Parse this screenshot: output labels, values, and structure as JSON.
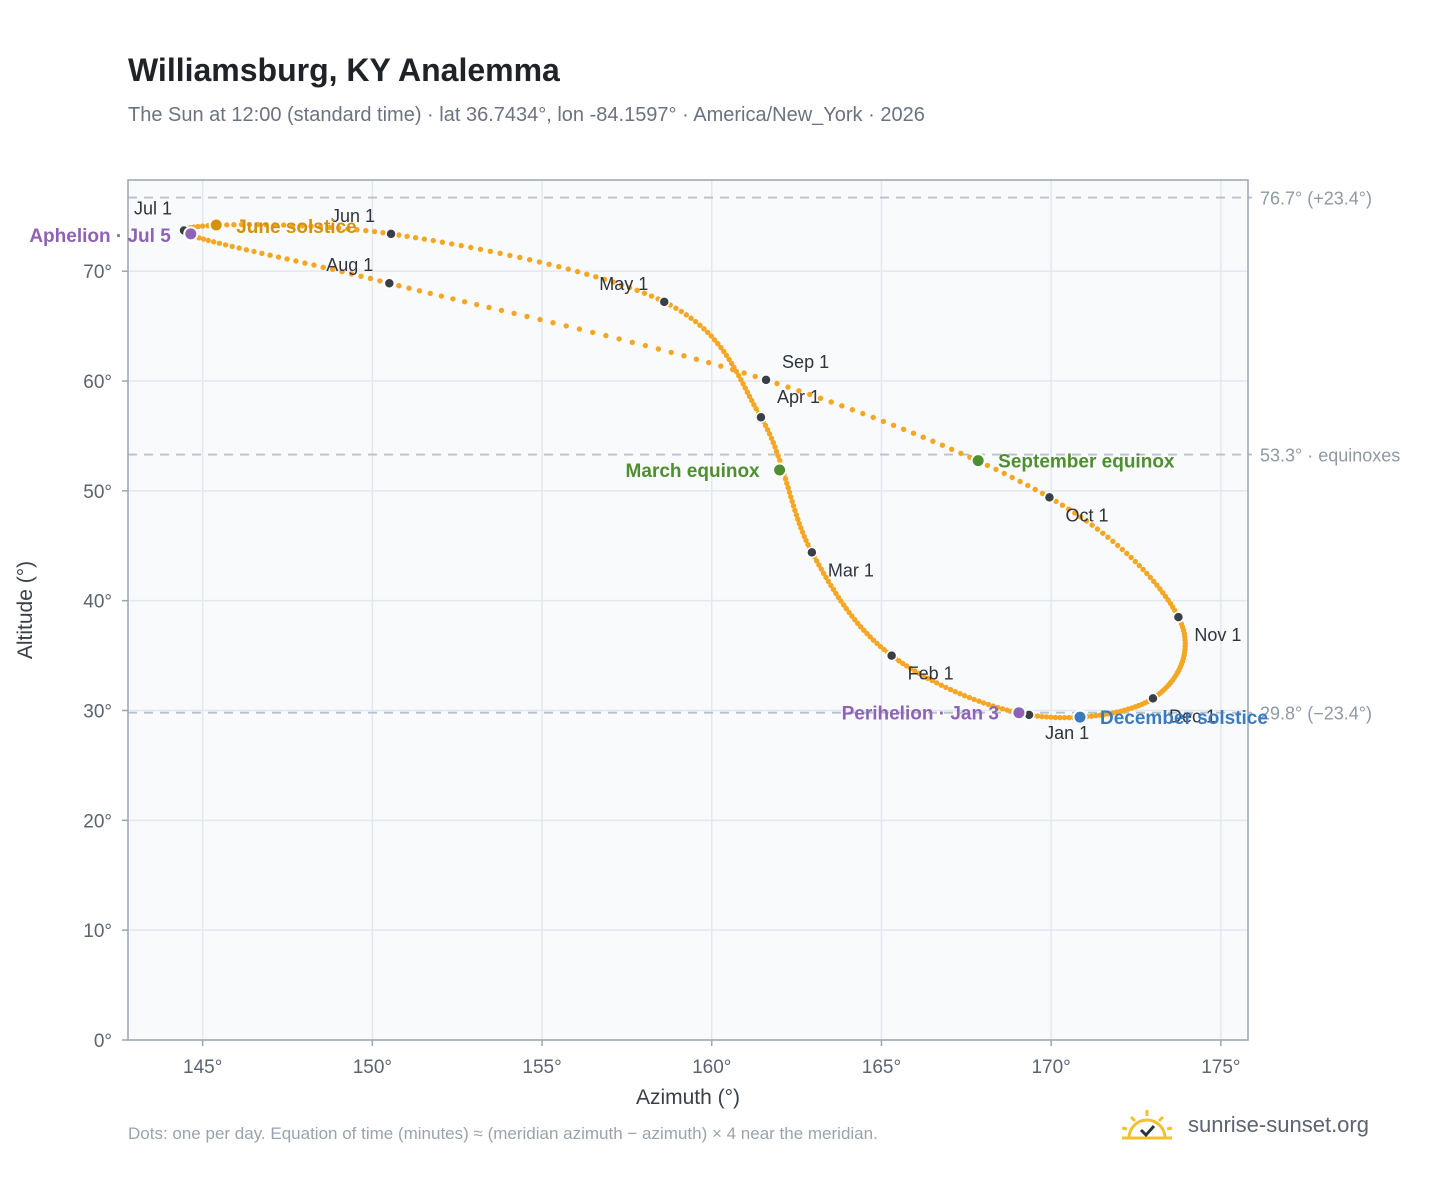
{
  "header": {
    "title": "Williamsburg, KY Analemma",
    "subtitle": "The Sun at 12:00 (standard time) · lat 36.7434°, lon -84.1597° · America/New_York · 2026"
  },
  "footer": {
    "note": "Dots: one per day. Equation of time (minutes) ≈ (meridian azimuth − azimuth) × 4 near the meridian.",
    "brand": "sunrise-sunset.org",
    "brand_icon": "sun-logo-icon"
  },
  "colors": {
    "path": "#f5a623",
    "month_marker": "#3a3f47",
    "equinox": "#4e8f2f",
    "june_solstice": "#d4920a",
    "december_solstice": "#3a7bbf",
    "apsis": "#8e63b5",
    "reference_line": "#b7c2cc",
    "plot_bg": "#f8fafc",
    "grid": "#e3e8ee",
    "axis": "#9aa5b1"
  },
  "chart_data": {
    "type": "scatter",
    "title": "Williamsburg, KY Analemma",
    "xlabel": "Azimuth (°)",
    "ylabel": "Altitude (°)",
    "xlim": [
      142.8,
      175.8
    ],
    "ylim": [
      0,
      78.3
    ],
    "x_ticks": [
      145,
      150,
      155,
      160,
      165,
      170,
      175
    ],
    "x_tick_labels": [
      "145°",
      "150°",
      "155°",
      "160°",
      "165°",
      "170°",
      "175°"
    ],
    "y_ticks": [
      0,
      10,
      20,
      30,
      40,
      50,
      60,
      70
    ],
    "y_tick_labels": [
      "0°",
      "10°",
      "20°",
      "30°",
      "40°",
      "50°",
      "60°",
      "70°"
    ],
    "grid": true,
    "series": [
      {
        "points_per": "day",
        "month_starts": [
          {
            "label": "Jan 1",
            "x": 169.35,
            "y": 29.6
          },
          {
            "label": "Feb 1",
            "x": 165.3,
            "y": 35.0
          },
          {
            "label": "Mar 1",
            "x": 162.95,
            "y": 44.4
          },
          {
            "label": "Apr 1",
            "x": 161.45,
            "y": 56.7
          },
          {
            "label": "May 1",
            "x": 158.6,
            "y": 67.2
          },
          {
            "label": "Jun 1",
            "x": 150.55,
            "y": 73.4
          },
          {
            "label": "Jul 1",
            "x": 144.45,
            "y": 73.7
          },
          {
            "label": "Aug 1",
            "x": 150.5,
            "y": 68.9
          },
          {
            "label": "Sep 1",
            "x": 161.6,
            "y": 60.1
          },
          {
            "label": "Oct 1",
            "x": 169.95,
            "y": 49.4
          },
          {
            "label": "Nov 1",
            "x": 173.75,
            "y": 38.5
          },
          {
            "label": "Dec 1",
            "x": 173.0,
            "y": 31.1
          }
        ]
      }
    ],
    "events": [
      {
        "label": "March equinox",
        "x": 162.0,
        "y": 51.9,
        "kind": "equinox"
      },
      {
        "label": "September equinox",
        "x": 167.85,
        "y": 52.75,
        "kind": "equinox"
      },
      {
        "label": "June solstice",
        "x": 145.4,
        "y": 74.2,
        "kind": "june_solstice"
      },
      {
        "label": "December solstice",
        "x": 170.85,
        "y": 29.4,
        "kind": "december_solstice"
      },
      {
        "label": "Aphelion · Jul 5",
        "x": 144.65,
        "y": 73.4,
        "kind": "apsis"
      },
      {
        "label": "Perihelion · Jan 3",
        "x": 169.05,
        "y": 29.8,
        "kind": "apsis"
      }
    ],
    "reference_lines": [
      {
        "y": 76.7,
        "label": "76.7° (+23.4°)"
      },
      {
        "y": 53.3,
        "label": "53.3° · equinoxes"
      },
      {
        "y": 29.8,
        "label": "29.8° (−23.4°)"
      }
    ]
  }
}
